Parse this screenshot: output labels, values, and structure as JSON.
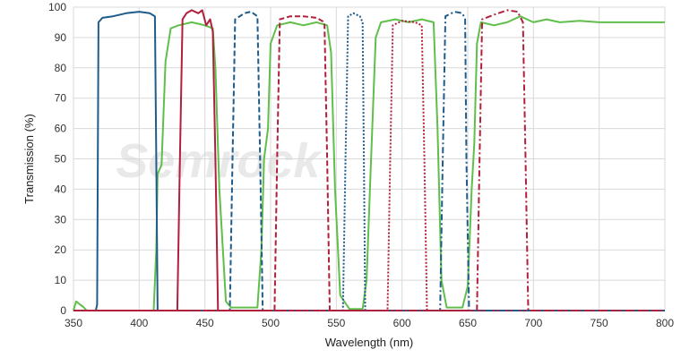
{
  "chart_data": {
    "type": "line",
    "xlabel": "Wavelength (nm)",
    "ylabel": "Transmission (%)",
    "xlim": [
      350,
      800
    ],
    "ylim": [
      0,
      100
    ],
    "x_ticks": [
      350,
      400,
      450,
      500,
      550,
      600,
      650,
      700,
      750,
      800
    ],
    "y_ticks": [
      0,
      10,
      20,
      30,
      40,
      50,
      60,
      70,
      80,
      90,
      100
    ],
    "grid": true,
    "watermark": "Semrock",
    "series": [
      {
        "color": "#1f5c8b",
        "style": "solid",
        "points": [
          [
            350,
            0
          ],
          [
            367,
            0
          ],
          [
            368,
            2
          ],
          [
            369,
            95
          ],
          [
            372,
            96.5
          ],
          [
            380,
            97
          ],
          [
            390,
            98
          ],
          [
            400,
            98.5
          ],
          [
            408,
            98
          ],
          [
            412,
            97
          ],
          [
            413,
            50
          ],
          [
            414,
            0
          ],
          [
            800,
            0
          ]
        ]
      },
      {
        "color": "#b0203c",
        "style": "solid",
        "points": [
          [
            350,
            0
          ],
          [
            429,
            0
          ],
          [
            431,
            50
          ],
          [
            433,
            96
          ],
          [
            436,
            98
          ],
          [
            440,
            99
          ],
          [
            445,
            98
          ],
          [
            448,
            99
          ],
          [
            451,
            94
          ],
          [
            454,
            96
          ],
          [
            456,
            92
          ],
          [
            458,
            50
          ],
          [
            460,
            0
          ],
          [
            800,
            0
          ]
        ]
      },
      {
        "color": "#1f5c8b",
        "style": "dashed",
        "points": [
          [
            350,
            0
          ],
          [
            469,
            0
          ],
          [
            471,
            50
          ],
          [
            473,
            96
          ],
          [
            480,
            98
          ],
          [
            485,
            98.5
          ],
          [
            490,
            97
          ],
          [
            492,
            50
          ],
          [
            494,
            0
          ],
          [
            800,
            0
          ]
        ]
      },
      {
        "color": "#b0203c",
        "style": "dashed",
        "points": [
          [
            350,
            0
          ],
          [
            503,
            0
          ],
          [
            505,
            50
          ],
          [
            507,
            96
          ],
          [
            515,
            97
          ],
          [
            525,
            97
          ],
          [
            535,
            96.5
          ],
          [
            541,
            95
          ],
          [
            543,
            50
          ],
          [
            545,
            0
          ],
          [
            800,
            0
          ]
        ]
      },
      {
        "color": "#1f5c8b",
        "style": "dotted",
        "points": [
          [
            350,
            0
          ],
          [
            555,
            0
          ],
          [
            557,
            50
          ],
          [
            559,
            97
          ],
          [
            563,
            98
          ],
          [
            568,
            97
          ],
          [
            570,
            95
          ],
          [
            571,
            50
          ],
          [
            572,
            0
          ],
          [
            800,
            0
          ]
        ]
      },
      {
        "color": "#b0203c",
        "style": "dotted",
        "points": [
          [
            350,
            0
          ],
          [
            589,
            0
          ],
          [
            591,
            50
          ],
          [
            593,
            94
          ],
          [
            600,
            95.5
          ],
          [
            610,
            95
          ],
          [
            615,
            94
          ],
          [
            617,
            50
          ],
          [
            619,
            0
          ],
          [
            800,
            0
          ]
        ]
      },
      {
        "color": "#1f5c8b",
        "style": "dashdot",
        "points": [
          [
            350,
            0
          ],
          [
            629,
            0
          ],
          [
            631,
            50
          ],
          [
            633,
            97
          ],
          [
            640,
            98.5
          ],
          [
            646,
            98
          ],
          [
            648,
            96
          ],
          [
            649,
            50
          ],
          [
            651,
            0
          ],
          [
            800,
            0
          ]
        ]
      },
      {
        "color": "#b0203c",
        "style": "dashdot",
        "points": [
          [
            350,
            0
          ],
          [
            657,
            0
          ],
          [
            659,
            50
          ],
          [
            661,
            96
          ],
          [
            670,
            97.5
          ],
          [
            680,
            99
          ],
          [
            688,
            98.5
          ],
          [
            692,
            95
          ],
          [
            694,
            50
          ],
          [
            696,
            0
          ],
          [
            800,
            0
          ]
        ]
      },
      {
        "color": "#5fbf4a",
        "style": "solid",
        "points": [
          [
            350,
            0
          ],
          [
            352,
            3
          ],
          [
            355,
            2
          ],
          [
            358,
            1
          ],
          [
            360,
            0
          ],
          [
            411,
            0
          ],
          [
            413,
            20
          ],
          [
            414,
            45
          ],
          [
            417,
            48
          ],
          [
            420,
            82
          ],
          [
            424,
            93
          ],
          [
            430,
            94
          ],
          [
            440,
            95
          ],
          [
            450,
            94
          ],
          [
            456,
            93
          ],
          [
            458,
            80
          ],
          [
            461,
            40
          ],
          [
            466,
            3
          ],
          [
            470,
            1
          ],
          [
            490,
            1
          ],
          [
            493,
            20
          ],
          [
            495,
            50
          ],
          [
            498,
            60
          ],
          [
            500,
            88
          ],
          [
            505,
            94
          ],
          [
            515,
            95
          ],
          [
            525,
            94
          ],
          [
            535,
            95
          ],
          [
            543,
            94
          ],
          [
            546,
            85
          ],
          [
            549,
            40
          ],
          [
            553,
            5
          ],
          [
            560,
            0.5
          ],
          [
            570,
            0.5
          ],
          [
            573,
            10
          ],
          [
            576,
            45
          ],
          [
            580,
            90
          ],
          [
            584,
            95
          ],
          [
            595,
            96
          ],
          [
            605,
            95
          ],
          [
            615,
            96
          ],
          [
            624,
            95
          ],
          [
            627,
            60
          ],
          [
            630,
            10
          ],
          [
            634,
            1
          ],
          [
            646,
            1
          ],
          [
            650,
            8
          ],
          [
            653,
            40
          ],
          [
            655,
            55
          ],
          [
            657,
            88
          ],
          [
            660,
            95
          ],
          [
            670,
            94
          ],
          [
            680,
            95
          ],
          [
            690,
            97
          ],
          [
            700,
            95
          ],
          [
            710,
            96
          ],
          [
            720,
            95
          ],
          [
            735,
            95.5
          ],
          [
            750,
            95
          ],
          [
            765,
            95
          ],
          [
            780,
            95
          ],
          [
            800,
            95
          ]
        ]
      }
    ]
  }
}
